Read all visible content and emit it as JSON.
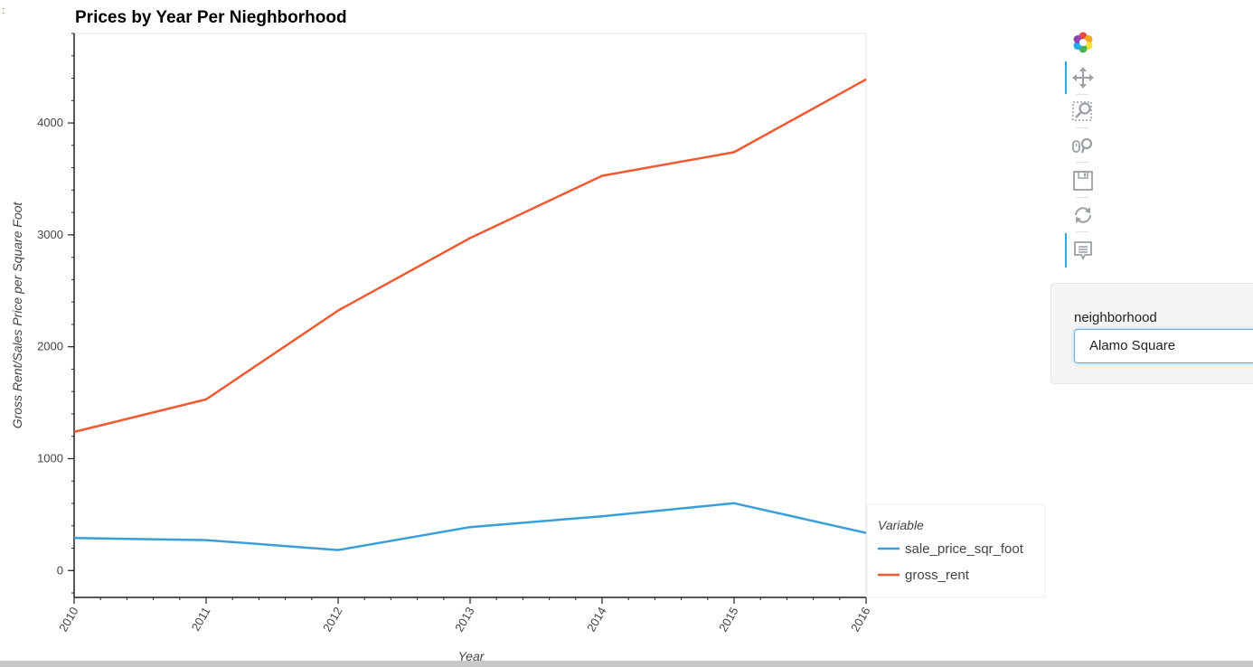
{
  "corner_mark": ":",
  "chart_data": {
    "type": "line",
    "title": "Prices by Year Per Nieghborhood",
    "xlabel": "Year",
    "ylabel": "Gross Rent/Sales Price per Square Foot",
    "x": [
      2010,
      2011,
      2012,
      2013,
      2014,
      2015,
      2016
    ],
    "x_tick_labels": [
      "2010",
      "2011",
      "2012",
      "2013",
      "2014",
      "2015",
      "2016"
    ],
    "y_ticks": [
      0,
      1000,
      2000,
      3000,
      4000
    ],
    "xlim": [
      2010,
      2016
    ],
    "ylim": [
      -240,
      4800
    ],
    "grid": false,
    "legend": {
      "title": "Variable",
      "placement": "right, outside plot, bottom"
    },
    "series": [
      {
        "name": "sale_price_sqr_foot",
        "color": "#3a9fd9",
        "values": [
          291,
          272,
          183,
          388,
          485,
          602,
          337
        ]
      },
      {
        "name": "gross_rent",
        "color": "#f05a32",
        "values": [
          1239,
          1530,
          2324,
          2971,
          3528,
          3739,
          4390
        ]
      }
    ]
  },
  "toolbar": {
    "tools": [
      {
        "name": "bokeh-logo-icon",
        "active": false
      },
      {
        "name": "pan-icon",
        "active": true
      },
      {
        "name": "box-zoom-icon",
        "active": false
      },
      {
        "name": "wheel-zoom-icon",
        "active": false
      },
      {
        "name": "save-icon",
        "active": false
      },
      {
        "name": "reset-icon",
        "active": false
      },
      {
        "name": "hover-icon",
        "active": true
      }
    ]
  },
  "widget": {
    "label": "neighborhood",
    "selected": "Alamo Square"
  }
}
